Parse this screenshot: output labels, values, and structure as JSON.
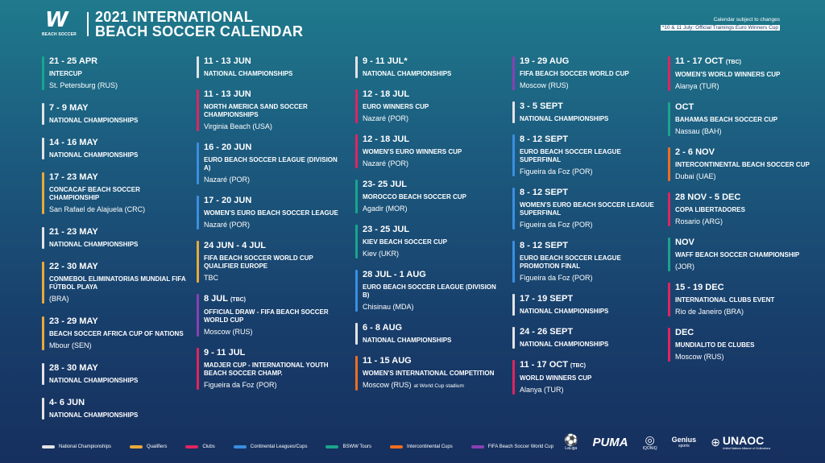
{
  "header": {
    "logo_mark": "W",
    "logo_text": "BEACH SOCCER",
    "title_line1": "2021 INTERNATIONAL",
    "title_line2": "BEACH SOCCER CALENDAR",
    "note1": "Calendar subject to changes",
    "note2": "*10 & 11 July: Official Trainings Euro Winners Cup"
  },
  "colors": {
    "national": "#e3e3e6",
    "qualifiers": "#e8a93a",
    "clubs": "#e0245e",
    "continental": "#3a8fe0",
    "bsww": "#19a58c",
    "intercontinental": "#ef6d1f",
    "worldcup": "#8a3fb3"
  },
  "columns": [
    {
      "events": [
        {
          "date": "21 - 25 APR",
          "tbc": "",
          "name": "INTERCUP",
          "location": "St. Petersburg (RUS)",
          "loc_extra": "",
          "type": "bsww"
        },
        {
          "date": "7 - 9 MAY",
          "tbc": "",
          "name": "NATIONAL CHAMPIONSHIPS",
          "location": "",
          "loc_extra": "",
          "type": "national"
        },
        {
          "date": "14 - 16 MAY",
          "tbc": "",
          "name": "NATIONAL CHAMPIONSHIPS",
          "location": "",
          "loc_extra": "",
          "type": "national"
        },
        {
          "date": "17 - 23 MAY",
          "tbc": "",
          "name": "CONCACAF BEACH SOCCER CHAMPIONSHIP",
          "location": "San Rafael de Alajuela (CRC)",
          "loc_extra": "",
          "type": "qualifiers"
        },
        {
          "date": "21 - 23 MAY",
          "tbc": "",
          "name": "NATIONAL CHAMPIONSHIPS",
          "location": "",
          "loc_extra": "",
          "type": "national"
        },
        {
          "date": "22 - 30 MAY",
          "tbc": "",
          "name": "CONMEBOL ELIMINATORIAS MUNDIAL FIFA FÚTBOL PLAYA",
          "location": "(BRA)",
          "loc_extra": "",
          "type": "qualifiers"
        },
        {
          "date": "23 - 29 MAY",
          "tbc": "",
          "name": "BEACH SOCCER AFRICA CUP OF NATIONS",
          "location": "Mbour (SEN)",
          "loc_extra": "",
          "type": "qualifiers"
        },
        {
          "date": "28 - 30 MAY",
          "tbc": "",
          "name": "NATIONAL CHAMPIONSHIPS",
          "location": "",
          "loc_extra": "",
          "type": "national"
        },
        {
          "date": "4- 6 JUN",
          "tbc": "",
          "name": "NATIONAL CHAMPIONSHIPS",
          "location": "",
          "loc_extra": "",
          "type": "national"
        }
      ]
    },
    {
      "events": [
        {
          "date": "11 - 13 JUN",
          "tbc": "",
          "name": "NATIONAL CHAMPIONSHIPS",
          "location": "",
          "loc_extra": "",
          "type": "national"
        },
        {
          "date": "11 - 13 JUN",
          "tbc": "",
          "name": "NORTH AMERICA SAND SOCCER CHAMPIONSHIPS",
          "location": "Virginia Beach (USA)",
          "loc_extra": "",
          "type": "clubs"
        },
        {
          "date": "16 - 20 JUN",
          "tbc": "",
          "name": "EURO BEACH SOCCER LEAGUE (DIVISION A)",
          "location": "Nazaré (POR)",
          "loc_extra": "",
          "type": "continental"
        },
        {
          "date": "17 - 20 JUN",
          "tbc": "",
          "name": "WOMEN'S EURO BEACH SOCCER LEAGUE",
          "location": "Nazaré (POR)",
          "loc_extra": "",
          "type": "continental"
        },
        {
          "date": "24 JUN - 4 JUL",
          "tbc": "",
          "name": "FIFA BEACH SOCCER WORLD CUP QUALIFIER EUROPE",
          "location": "TBC",
          "loc_extra": "",
          "type": "qualifiers"
        },
        {
          "date": "8 JUL",
          "tbc": "(TBC)",
          "name": "OFFICIAL DRAW - FIFA BEACH SOCCER WORLD CUP",
          "location": "Moscow (RUS)",
          "loc_extra": "",
          "type": "worldcup"
        },
        {
          "date": "9 - 11 JUL",
          "tbc": "",
          "name": "MADJER CUP - INTERNATIONAL YOUTH BEACH SOCCER CHAMP.",
          "location": "Figueira da Foz (POR)",
          "loc_extra": "",
          "type": "clubs"
        }
      ]
    },
    {
      "events": [
        {
          "date": "9 - 11 JUL*",
          "tbc": "",
          "name": "NATIONAL CHAMPIONSHIPS",
          "location": "",
          "loc_extra": "",
          "type": "national"
        },
        {
          "date": "12 - 18 JUL",
          "tbc": "",
          "name": "EURO WINNERS CUP",
          "location": "Nazaré (POR)",
          "loc_extra": "",
          "type": "clubs"
        },
        {
          "date": "12 - 18 JUL",
          "tbc": "",
          "name": "WOMEN'S EURO WINNERS CUP",
          "location": "Nazaré (POR)",
          "loc_extra": "",
          "type": "clubs"
        },
        {
          "date": "23- 25 JUL",
          "tbc": "",
          "name": "MOROCCO BEACH SOCCER CUP",
          "location": "Agadir (MOR)",
          "loc_extra": "",
          "type": "bsww"
        },
        {
          "date": "23 - 25 JUL",
          "tbc": "",
          "name": "KIEV BEACH SOCCER CUP",
          "location": "Kiev (UKR)",
          "loc_extra": "",
          "type": "bsww"
        },
        {
          "date": "28 JUL - 1 AUG",
          "tbc": "",
          "name": "EURO BEACH SOCCER LEAGUE (DIVISION B)",
          "location": "Chisinau (MDA)",
          "loc_extra": "",
          "type": "continental"
        },
        {
          "date": "6 - 8 AUG",
          "tbc": "",
          "name": "NATIONAL CHAMPIONSHIPS",
          "location": "",
          "loc_extra": "",
          "type": "national"
        },
        {
          "date": "11 - 15 AUG",
          "tbc": "",
          "name": "WOMEN'S INTERNATIONAL COMPETITION",
          "location": "Moscow (RUS)",
          "loc_extra": "at World Cup stadium",
          "type": "intercontinental"
        }
      ]
    },
    {
      "events": [
        {
          "date": "19 - 29 AUG",
          "tbc": "",
          "name": "FIFA BEACH SOCCER WORLD CUP",
          "location": "Moscow (RUS)",
          "loc_extra": "",
          "type": "worldcup"
        },
        {
          "date": "3 - 5 SEPT",
          "tbc": "",
          "name": "NATIONAL CHAMPIONSHIPS",
          "location": "",
          "loc_extra": "",
          "type": "national"
        },
        {
          "date": "8 - 12 SEPT",
          "tbc": "",
          "name": "EURO BEACH SOCCER LEAGUE SUPERFINAL",
          "location": "Figueira da Foz (POR)",
          "loc_extra": "",
          "type": "continental"
        },
        {
          "date": "8 - 12 SEPT",
          "tbc": "",
          "name": "WOMEN'S EURO BEACH SOCCER LEAGUE SUPERFINAL",
          "location": "Figueira da Foz (POR)",
          "loc_extra": "",
          "type": "continental"
        },
        {
          "date": "8 - 12 SEPT",
          "tbc": "",
          "name": "EURO BEACH SOCCER LEAGUE PROMOTION FINAL",
          "location": "Figueira da Foz (POR)",
          "loc_extra": "",
          "type": "continental"
        },
        {
          "date": "17 - 19 SEPT",
          "tbc": "",
          "name": "NATIONAL CHAMPIONSHIPS",
          "location": "",
          "loc_extra": "",
          "type": "national"
        },
        {
          "date": "24 - 26 SEPT",
          "tbc": "",
          "name": "NATIONAL CHAMPIONSHIPS",
          "location": "",
          "loc_extra": "",
          "type": "national"
        },
        {
          "date": "11 - 17 OCT",
          "tbc": "(TBC)",
          "name": "WORLD WINNERS CUP",
          "location": "Alanya (TUR)",
          "loc_extra": "",
          "type": "clubs"
        }
      ]
    },
    {
      "events": [
        {
          "date": "11 - 17 OCT",
          "tbc": "(TBC)",
          "name": "WOMEN'S WORLD WINNERS CUP",
          "location": "Alanya (TUR)",
          "loc_extra": "",
          "type": "clubs"
        },
        {
          "date": "OCT",
          "tbc": "",
          "name": "BAHAMAS BEACH SOCCER CUP",
          "location": "Nassau (BAH)",
          "loc_extra": "",
          "type": "bsww"
        },
        {
          "date": "2 - 6 NOV",
          "tbc": "",
          "name": "INTERCONTINENTAL BEACH SOCCER CUP",
          "location": "Dubai (UAE)",
          "loc_extra": "",
          "type": "intercontinental"
        },
        {
          "date": "28 NOV - 5 DEC",
          "tbc": "",
          "name": "COPA LIBERTADORES",
          "location": "Rosario (ARG)",
          "loc_extra": "",
          "type": "clubs"
        },
        {
          "date": "NOV",
          "tbc": "",
          "name": "WAFF BEACH SOCCER CHAMPIONSHIP",
          "location": "(JOR)",
          "loc_extra": "",
          "type": "bsww"
        },
        {
          "date": "15 - 19 DEC",
          "tbc": "",
          "name": "INTERNATIONAL CLUBS EVENT",
          "location": "Rio de Janeiro (BRA)",
          "loc_extra": "",
          "type": "clubs"
        },
        {
          "date": "DEC",
          "tbc": "",
          "name": "MUNDIALITO DE CLUBES",
          "location": "Moscow (RUS)",
          "loc_extra": "",
          "type": "clubs"
        }
      ]
    }
  ],
  "legend": [
    {
      "label": "National Championships",
      "type": "national"
    },
    {
      "label": "Qualifiers",
      "type": "qualifiers"
    },
    {
      "label": "Clubs",
      "type": "clubs"
    },
    {
      "label": "Continental Leagues/Cups",
      "type": "continental"
    },
    {
      "label": "BSWW Tours",
      "type": "bsww"
    },
    {
      "label": "Intercontinental Cups",
      "type": "intercontinental"
    },
    {
      "label": "FIFA Beach Soccer World Cup",
      "type": "worldcup"
    }
  ],
  "sponsors": {
    "laliga": "LaLiga",
    "puma": "PUMA",
    "iqoniq": "IQONIQ",
    "genius": "Genius",
    "genius_sub": "sports",
    "unaoc": "UNAOC",
    "unaoc_sub": "United Nations Alliance of Civilizations"
  }
}
